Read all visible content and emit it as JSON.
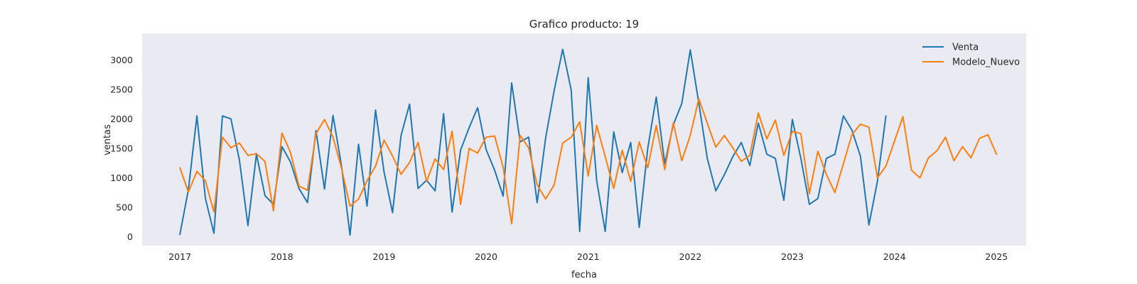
{
  "chart_data": {
    "type": "line",
    "title": "Grafico producto: 19",
    "xlabel": "fecha",
    "ylabel": "ventas",
    "xlim": [
      2016.63,
      2025.29
    ],
    "ylim": [
      -150,
      3450
    ],
    "x_ticks": [
      2017,
      2018,
      2019,
      2020,
      2021,
      2022,
      2023,
      2024,
      2025
    ],
    "y_ticks": [
      0,
      500,
      1000,
      1500,
      2000,
      2500,
      3000
    ],
    "grid": false,
    "background": "#eaeaf2",
    "legend_position": "top-right",
    "series": [
      {
        "name": "Venta",
        "color": "#1f77b4",
        "x_start": 2017,
        "step": 0.08333,
        "values": [
          40,
          800,
          2050,
          650,
          60,
          2050,
          2000,
          1300,
          190,
          1400,
          700,
          550,
          1530,
          1270,
          820,
          580,
          1800,
          810,
          2060,
          1200,
          30,
          1570,
          520,
          2150,
          1100,
          410,
          1720,
          2250,
          820,
          960,
          780,
          2090,
          420,
          1470,
          1850,
          2190,
          1480,
          1130,
          690,
          2610,
          1610,
          1690,
          580,
          1680,
          2480,
          3180,
          2490,
          90,
          2700,
          950,
          90,
          1780,
          1090,
          1600,
          160,
          1500,
          2370,
          1240,
          1900,
          2260,
          3170,
          2270,
          1330,
          780,
          1050,
          1360,
          1600,
          1210,
          1930,
          1400,
          1330,
          620,
          1990,
          1330,
          550,
          650,
          1330,
          1400,
          2050,
          1810,
          1370,
          200,
          940,
          2050
        ]
      },
      {
        "name": "Modelo_Nuevo",
        "color": "#ff7f0e",
        "x_start": 2017,
        "step": 0.08333,
        "values": [
          1170,
          760,
          1110,
          950,
          420,
          1690,
          1510,
          1590,
          1380,
          1410,
          1280,
          440,
          1760,
          1430,
          860,
          790,
          1750,
          1990,
          1690,
          1160,
          520,
          640,
          950,
          1200,
          1640,
          1370,
          1060,
          1260,
          1600,
          940,
          1320,
          1140,
          1790,
          550,
          1500,
          1420,
          1690,
          1710,
          1180,
          220,
          1720,
          1510,
          880,
          640,
          880,
          1590,
          1690,
          1950,
          1030,
          1890,
          1360,
          820,
          1470,
          940,
          1610,
          1170,
          1890,
          1140,
          1930,
          1290,
          1720,
          2340,
          1930,
          1520,
          1720,
          1510,
          1280,
          1380,
          2100,
          1660,
          1980,
          1380,
          1790,
          1750,
          730,
          1450,
          1060,
          750,
          1240,
          1730,
          1910,
          1860,
          1000,
          1200,
          1620,
          2040,
          1130,
          1000,
          1340,
          1460,
          1690,
          1290,
          1530,
          1340,
          1670,
          1730,
          1400
        ]
      }
    ]
  }
}
